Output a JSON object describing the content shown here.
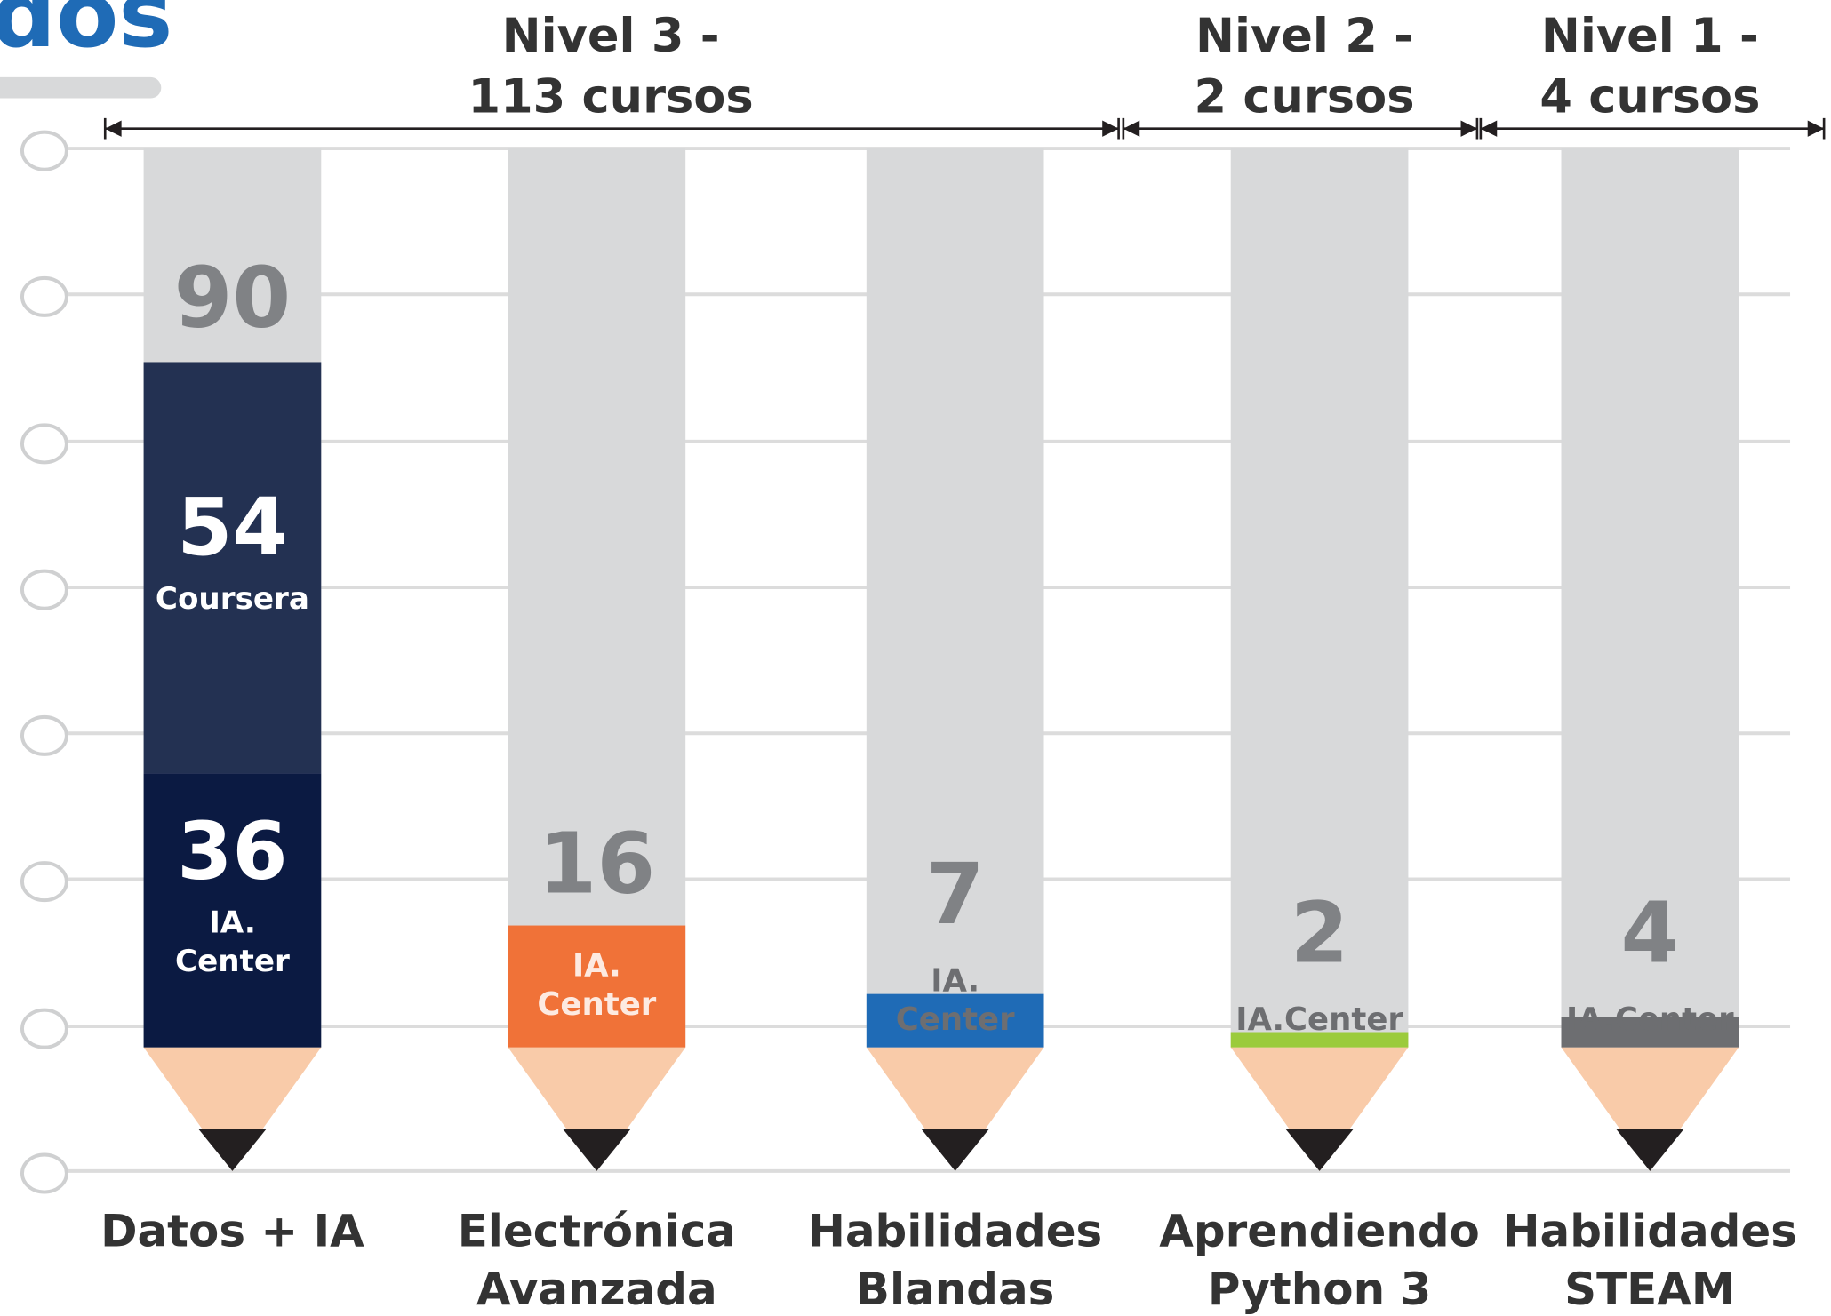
{
  "chart_data": {
    "type": "pencil",
    "title": "dos",
    "groups": [
      {
        "label": [
          "Nivel 3 -",
          "113 cursos"
        ]
      },
      {
        "label": [
          "Nivel 2 -",
          "2 cursos"
        ]
      },
      {
        "label": [
          "Nivel 1 -",
          "4 cursos"
        ]
      }
    ],
    "categories": [
      [
        "Datos + IA"
      ],
      [
        "Electrónica",
        "Avanzada"
      ],
      [
        "Habilidades",
        "Blandas"
      ],
      [
        "Aprendiendo",
        "Python 3"
      ],
      [
        "Habilidades",
        "STEAM"
      ]
    ],
    "bars": [
      {
        "total": 90,
        "segments": [
          {
            "value": 36,
            "label": [
              "IA.",
              "Center"
            ],
            "color": "#0b1a42"
          },
          {
            "value": 54,
            "label": [
              "Coursera"
            ],
            "color": "#233152"
          }
        ]
      },
      {
        "segments": [
          {
            "value": 16,
            "label": [
              "IA.",
              "Center"
            ],
            "color": "#f07238"
          }
        ]
      },
      {
        "segments": [
          {
            "value": 7,
            "label": [
              "IA.",
              "Center"
            ],
            "color": "#1f6bb6"
          }
        ]
      },
      {
        "segments": [
          {
            "value": 2,
            "label": [
              "IA.Center"
            ],
            "color": "#9bcb3c"
          }
        ]
      },
      {
        "segments": [
          {
            "value": 4,
            "label": [
              "IA.Center"
            ],
            "color": "#6d6e71"
          }
        ]
      }
    ]
  }
}
